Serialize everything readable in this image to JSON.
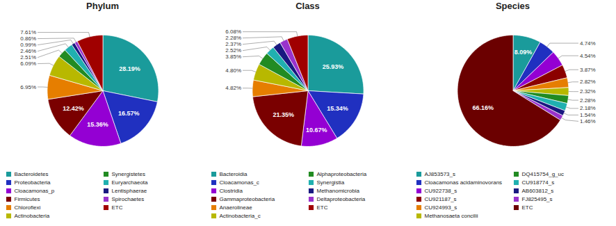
{
  "chart_data": [
    {
      "type": "pie",
      "title": "Phylum",
      "categories": [
        "Bacteroidetes",
        "Proteobacteria",
        "Cloacamonas_p",
        "Firmicutes",
        "Chloroflexi",
        "Actinobacteria",
        "Synergistetes",
        "Euryarchaeota",
        "Lentisphaerae",
        "Spirochaetes",
        "ETC"
      ],
      "values": [
        28.19,
        16.57,
        15.36,
        12.42,
        6.95,
        6.09,
        2.51,
        2.46,
        0.99,
        0.86,
        7.61
      ],
      "value_labels": [
        "28.19%",
        "16.57%",
        "15.36%",
        "12.42%",
        "6.95%",
        "6.09%",
        "2.51%",
        "2.46%",
        "0.99%",
        "0.86%",
        "7.61%"
      ],
      "colors": [
        "#1a9b9b",
        "#2030c0",
        "#9400D3",
        "#7a0000",
        "#e67e00",
        "#b8b800",
        "#228B22",
        "#20b0b0",
        "#191980",
        "#9932CC",
        "#a00000"
      ],
      "data_labels": true,
      "legend": "bottom"
    },
    {
      "type": "pie",
      "title": "Class",
      "categories": [
        "Bacteroidia",
        "Cloacamonas_c",
        "Clostridia",
        "Gammaproteobacteria",
        "Anaerolineae",
        "Actinobacteria_c",
        "Alphaproteobacteria",
        "Synergistia",
        "Methanomicrobia",
        "Deltaproteobacteria",
        "ETC"
      ],
      "values": [
        25.93,
        15.34,
        10.67,
        21.35,
        4.82,
        4.8,
        3.85,
        2.52,
        2.37,
        2.28,
        6.08
      ],
      "value_labels": [
        "25.93%",
        "15.34%",
        "10.67%",
        "21.35%",
        "4.82%",
        "4.80%",
        "3.85%",
        "2.52%",
        "2.37%",
        "2.28%",
        "6.08%"
      ],
      "colors": [
        "#1a9b9b",
        "#2030c0",
        "#9400D3",
        "#7a0000",
        "#e67e00",
        "#b8b800",
        "#228B22",
        "#20b0b0",
        "#191980",
        "#9932CC",
        "#a00000"
      ],
      "data_labels": true,
      "legend": "bottom"
    },
    {
      "type": "pie",
      "title": "Species",
      "categories": [
        "AJ853573_s",
        "Cloacamonas acidaminovorans",
        "CU922738_s",
        "CU921187_s",
        "CU924993_s",
        "Methanosaeta concilii",
        "DQ415754_g_uc",
        "CU918774_s",
        "AB603812_s",
        "FJ825495_s",
        "ETC"
      ],
      "values": [
        8.09,
        4.74,
        4.54,
        3.87,
        2.82,
        2.32,
        2.28,
        2.18,
        1.54,
        1.46,
        66.16
      ],
      "value_labels": [
        "8.09%",
        "4.74%",
        "4.54%",
        "3.87%",
        "2.82%",
        "2.32%",
        "2.28%",
        "2.18%",
        "1.54%",
        "1.46%",
        "66.16%"
      ],
      "colors": [
        "#1a9b9b",
        "#2030c0",
        "#9400D3",
        "#8B0000",
        "#e67e00",
        "#b8b800",
        "#228B22",
        "#20b0b0",
        "#191980",
        "#9932CC",
        "#6b0000"
      ],
      "data_labels": true,
      "legend": "bottom"
    }
  ]
}
